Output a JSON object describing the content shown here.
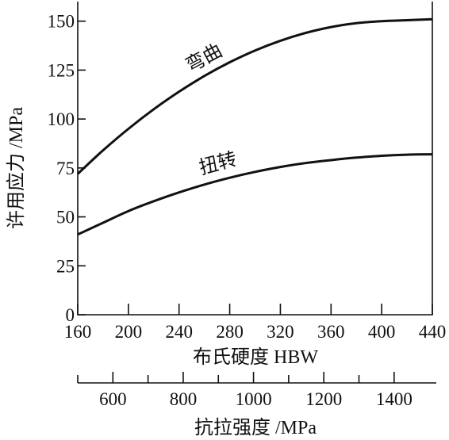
{
  "chart_data": {
    "type": "line",
    "ylabel": "许用应力 /MPa",
    "xlabel": "布氏硬度 HBW",
    "x2label": "抗拉强度 /MPa",
    "xlim": [
      160,
      440
    ],
    "ylim": [
      0,
      160
    ],
    "x_ticks": [
      160,
      200,
      240,
      280,
      320,
      360,
      400,
      440
    ],
    "y_ticks": [
      0,
      25,
      50,
      75,
      100,
      125,
      150
    ],
    "x2_ticks": [
      600,
      800,
      1000,
      1200,
      1400
    ],
    "x2_minor_ticks": [
      500,
      700,
      900,
      1100,
      1300
    ],
    "x2lim": [
      500,
      1520
    ],
    "grid": false,
    "legend": "none",
    "series": [
      {
        "name": "弯曲",
        "x": [
          160,
          180,
          200,
          220,
          240,
          260,
          280,
          300,
          320,
          340,
          360,
          380,
          400,
          420,
          440
        ],
        "y": [
          72,
          84,
          95,
          105,
          114,
          122,
          129,
          135,
          140,
          144,
          147,
          149,
          150,
          150.5,
          151
        ]
      },
      {
        "name": "扭转",
        "x": [
          160,
          180,
          200,
          220,
          240,
          260,
          280,
          300,
          320,
          340,
          360,
          380,
          400,
          420,
          440
        ],
        "y": [
          41,
          47,
          53,
          58,
          62.5,
          66.5,
          70,
          73,
          75.5,
          77.5,
          79,
          80.3,
          81.2,
          81.8,
          82
        ]
      }
    ]
  }
}
